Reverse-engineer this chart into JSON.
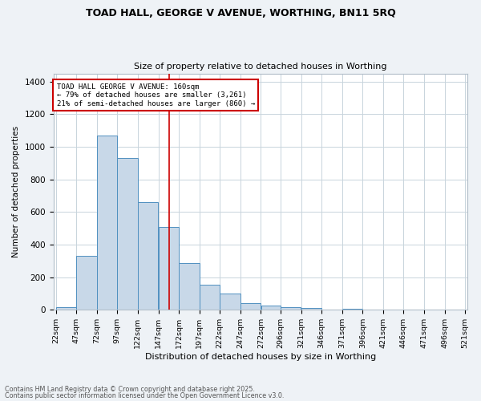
{
  "title1": "TOAD HALL, GEORGE V AVENUE, WORTHING, BN11 5RQ",
  "title2": "Size of property relative to detached houses in Worthing",
  "xlabel": "Distribution of detached houses by size in Worthing",
  "ylabel": "Number of detached properties",
  "bin_edges": [
    22,
    47,
    72,
    97,
    122,
    147,
    172,
    197,
    222,
    247,
    272,
    296,
    321,
    346,
    371,
    396,
    421,
    446,
    471,
    496,
    521
  ],
  "bar_heights": [
    18,
    330,
    1070,
    930,
    660,
    510,
    285,
    155,
    100,
    42,
    25,
    18,
    10,
    0,
    8,
    0,
    0,
    0,
    0,
    0
  ],
  "bar_color": "#c8d8e8",
  "bar_edge_color": "#5090c0",
  "vline_x": 160,
  "vline_color": "#cc0000",
  "annotation_title": "TOAD HALL GEORGE V AVENUE: 160sqm",
  "annotation_line2": "← 79% of detached houses are smaller (3,261)",
  "annotation_line3": "21% of semi-detached houses are larger (860) →",
  "annotation_box_color": "#cc0000",
  "ylim": [
    0,
    1450
  ],
  "yticks": [
    0,
    200,
    400,
    600,
    800,
    1000,
    1200,
    1400
  ],
  "tick_labels": [
    "22sqm",
    "47sqm",
    "72sqm",
    "97sqm",
    "122sqm",
    "147sqm",
    "172sqm",
    "197sqm",
    "222sqm",
    "247sqm",
    "272sqm",
    "296sqm",
    "321sqm",
    "346sqm",
    "371sqm",
    "396sqm",
    "421sqm",
    "446sqm",
    "471sqm",
    "496sqm",
    "521sqm"
  ],
  "footnote1": "Contains HM Land Registry data © Crown copyright and database right 2025.",
  "footnote2": "Contains public sector information licensed under the Open Government Licence v3.0.",
  "bg_color": "#eef2f6",
  "plot_bg_color": "#ffffff",
  "grid_color": "#c8d4dc"
}
